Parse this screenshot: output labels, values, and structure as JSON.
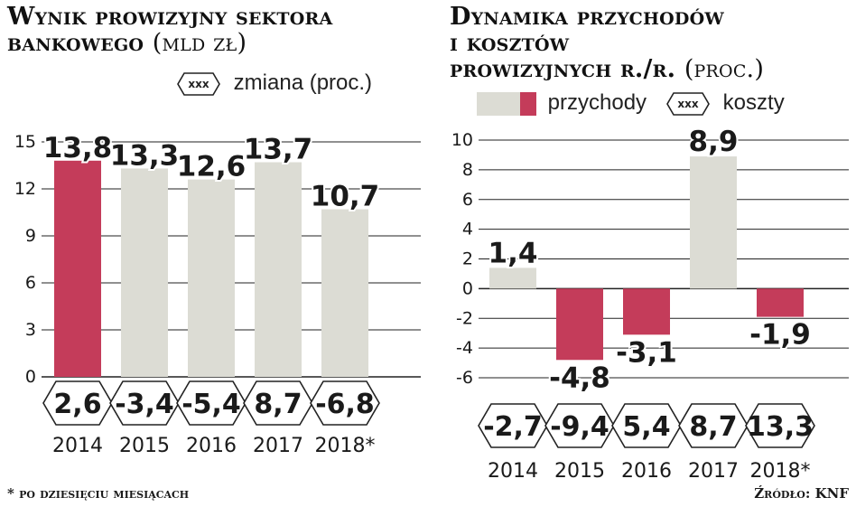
{
  "colors": {
    "highlight": "#c43c5a",
    "bar": "#dcdcd4",
    "grid": "#222222",
    "text": "#1a1a1a"
  },
  "left": {
    "title": "Wynik prowizyjny sektora bankowego",
    "unit": "(mld zł)",
    "legend": {
      "hex_label": "xxx",
      "text": "zmiana (proc.)"
    }
  },
  "right": {
    "title_line1": "Dynamika przychodów",
    "title_line2": "i kosztów",
    "title_line3": "prowizyjnych r./r.",
    "unit": "(proc.)",
    "legend": {
      "revenue": "przychody",
      "hex_label": "xxx",
      "costs": "koszty"
    }
  },
  "footnote": "* po dziesięciu miesiącach",
  "source": "Źródło: KNF",
  "chart_data": [
    {
      "type": "bar",
      "title": "Wynik prowizyjny sektora bankowego (mld zł)",
      "categories": [
        "2014",
        "2015",
        "2016",
        "2017",
        "2018*"
      ],
      "values": [
        13.8,
        13.3,
        12.6,
        13.7,
        10.7
      ],
      "value_labels": [
        "13,8",
        "13,3",
        "12,6",
        "13,7",
        "10,7"
      ],
      "highlight_index": 0,
      "ylim": [
        0,
        15
      ],
      "yticks": [
        0,
        3,
        6,
        9,
        12,
        15
      ],
      "change_labels": [
        "2,6",
        "-3,4",
        "-5,4",
        "8,7",
        "-6,8"
      ],
      "legend": [
        "zmiana (proc.)"
      ],
      "grid": true
    },
    {
      "type": "bar",
      "title": "Dynamika przychodów i kosztów prowizyjnych r./r. (proc.)",
      "categories": [
        "2014",
        "2015",
        "2016",
        "2017",
        "2018*"
      ],
      "series": [
        {
          "name": "przychody",
          "values": [
            1.4,
            -4.8,
            -3.1,
            8.9,
            -1.9
          ],
          "value_labels": [
            "1,4",
            "-4,8",
            "-3,1",
            "8,9",
            "-1,9"
          ]
        },
        {
          "name": "koszty",
          "values": [
            -2.7,
            -9.4,
            5.4,
            8.7,
            13.3
          ],
          "value_labels": [
            "-2,7",
            "-9,4",
            "5,4",
            "8,7",
            "13,3"
          ]
        }
      ],
      "ylim": [
        -6,
        10
      ],
      "yticks": [
        10,
        8,
        6,
        4,
        2,
        0,
        -2,
        -4,
        -6
      ],
      "ytick_labels": [
        "10",
        "8",
        "6",
        "4",
        "2",
        "0",
        "-2",
        "-4",
        "-6"
      ],
      "legend": [
        "przychody",
        "koszty"
      ],
      "grid": true
    }
  ]
}
